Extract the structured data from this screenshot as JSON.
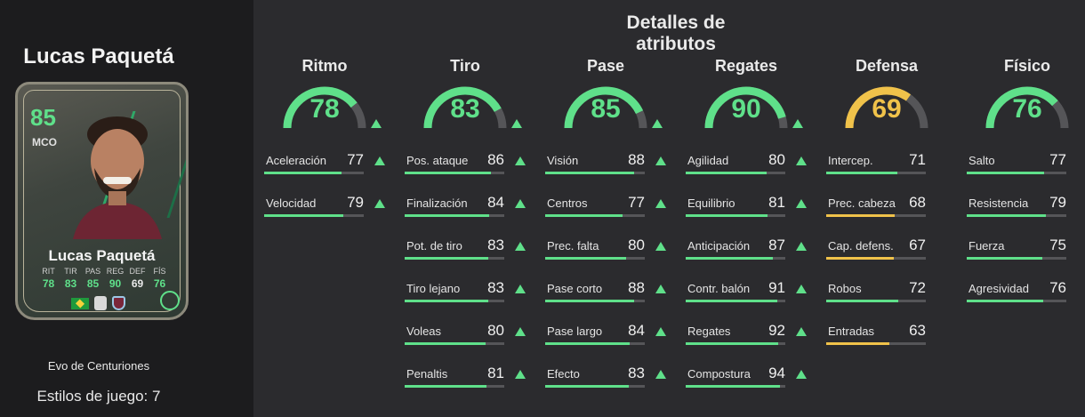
{
  "player": {
    "name": "Lucas Paquetá",
    "card_rating": "85",
    "card_position": "MCO",
    "card_name": "Lucas Paquetá",
    "mini_stats": [
      {
        "label": "RIT",
        "value": "78"
      },
      {
        "label": "TIR",
        "value": "83"
      },
      {
        "label": "PAS",
        "value": "85"
      },
      {
        "label": "REG",
        "value": "90"
      },
      {
        "label": "DEF",
        "value": "69"
      },
      {
        "label": "FÍS",
        "value": "76"
      }
    ],
    "evo_name": "Evo de Centuriones",
    "playstyles": "Estilos de juego: 7"
  },
  "title": "Detalles de atributos",
  "colors": {
    "green": "#5fe08a",
    "yellow": "#f0c24a",
    "track": "#555558"
  },
  "columns": [
    {
      "name": "Ritmo",
      "value": "78",
      "upgraded": true,
      "color": "#5fe08a",
      "attrs": [
        {
          "name": "Aceleración",
          "value": "77",
          "upgraded": true
        },
        {
          "name": "Velocidad",
          "value": "79",
          "upgraded": true
        }
      ]
    },
    {
      "name": "Tiro",
      "value": "83",
      "upgraded": true,
      "color": "#5fe08a",
      "attrs": [
        {
          "name": "Pos. ataque",
          "value": "86",
          "upgraded": true
        },
        {
          "name": "Finalización",
          "value": "84",
          "upgraded": true
        },
        {
          "name": "Pot. de tiro",
          "value": "83",
          "upgraded": true
        },
        {
          "name": "Tiro lejano",
          "value": "83",
          "upgraded": true
        },
        {
          "name": "Voleas",
          "value": "80",
          "upgraded": true
        },
        {
          "name": "Penaltis",
          "value": "81",
          "upgraded": true
        }
      ]
    },
    {
      "name": "Pase",
      "value": "85",
      "upgraded": true,
      "color": "#5fe08a",
      "attrs": [
        {
          "name": "Visión",
          "value": "88",
          "upgraded": true
        },
        {
          "name": "Centros",
          "value": "77",
          "upgraded": true
        },
        {
          "name": "Prec. falta",
          "value": "80",
          "upgraded": true
        },
        {
          "name": "Pase corto",
          "value": "88",
          "upgraded": true
        },
        {
          "name": "Pase largo",
          "value": "84",
          "upgraded": true
        },
        {
          "name": "Efecto",
          "value": "83",
          "upgraded": true
        }
      ]
    },
    {
      "name": "Regates",
      "value": "90",
      "upgraded": true,
      "color": "#5fe08a",
      "attrs": [
        {
          "name": "Agilidad",
          "value": "80",
          "upgraded": true
        },
        {
          "name": "Equilibrio",
          "value": "81",
          "upgraded": true
        },
        {
          "name": "Anticipación",
          "value": "87",
          "upgraded": true
        },
        {
          "name": "Contr. balón",
          "value": "91",
          "upgraded": true
        },
        {
          "name": "Regates",
          "value": "92",
          "upgraded": true
        },
        {
          "name": "Compostura",
          "value": "94",
          "upgraded": true
        }
      ]
    },
    {
      "name": "Defensa",
      "value": "69",
      "upgraded": false,
      "color": "#f0c24a",
      "attrs": [
        {
          "name": "Intercep.",
          "value": "71",
          "upgraded": false
        },
        {
          "name": "Prec. cabeza",
          "value": "68",
          "upgraded": false
        },
        {
          "name": "Cap. defens.",
          "value": "67",
          "upgraded": false
        },
        {
          "name": "Robos",
          "value": "72",
          "upgraded": false
        },
        {
          "name": "Entradas",
          "value": "63",
          "upgraded": false
        }
      ]
    },
    {
      "name": "Físico",
      "value": "76",
      "upgraded": false,
      "color": "#5fe08a",
      "attrs": [
        {
          "name": "Salto",
          "value": "77",
          "upgraded": false
        },
        {
          "name": "Resistencia",
          "value": "79",
          "upgraded": false
        },
        {
          "name": "Fuerza",
          "value": "75",
          "upgraded": false
        },
        {
          "name": "Agresividad",
          "value": "76",
          "upgraded": false
        }
      ]
    }
  ]
}
